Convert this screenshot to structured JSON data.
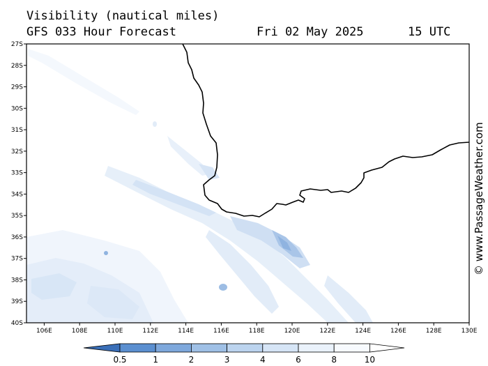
{
  "header": {
    "title": "Visibility (nautical miles)",
    "subtitle": "GFS 033 Hour Forecast",
    "date": "Fri 02 May 2025",
    "time": "15 UTC"
  },
  "map": {
    "lat_labels": [
      "27S",
      "28S",
      "29S",
      "30S",
      "31S",
      "32S",
      "33S",
      "34S",
      "35S",
      "36S",
      "37S",
      "38S",
      "39S",
      "40S"
    ],
    "lon_labels": [
      "106E",
      "108E",
      "110E",
      "112E",
      "114E",
      "116E",
      "118E",
      "120E",
      "122E",
      "124E",
      "126E",
      "128E",
      "130E"
    ],
    "lat_range": [
      -27,
      -40
    ],
    "lon_range": [
      105,
      130
    ]
  },
  "legend": {
    "labels": [
      "0.5",
      "1",
      "2",
      "3",
      "4",
      "6",
      "8",
      "10"
    ],
    "colors": [
      "#3a6fb8",
      "#5b8fd0",
      "#7ea8dc",
      "#9fc0e6",
      "#bcd4ef",
      "#d6e5f6",
      "#eaf2fb",
      "#f7fafe",
      "#ffffff"
    ]
  },
  "copyright": "© www.PassageWeather.com"
}
